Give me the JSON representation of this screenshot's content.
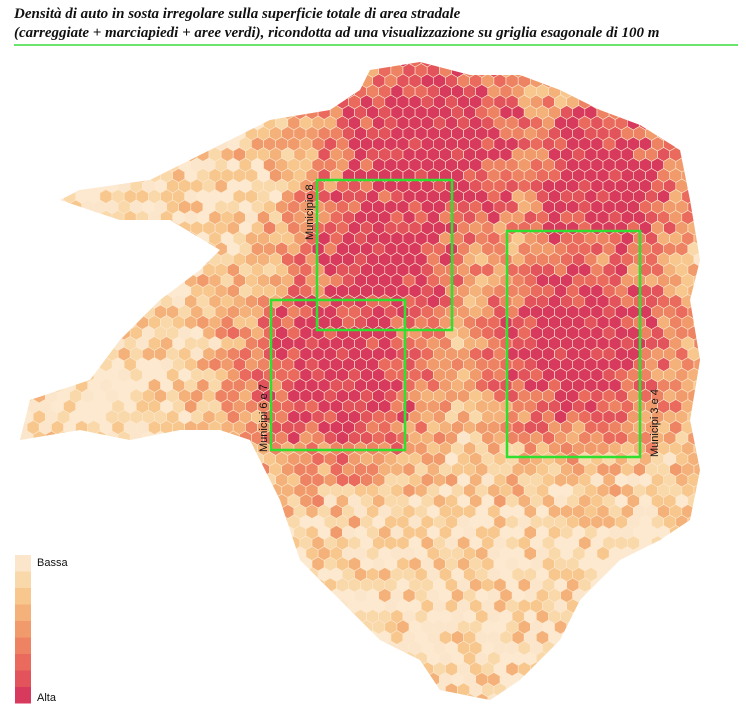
{
  "title": {
    "line1": "Densità di auto in sosta irregolare sulla superficie totale di area stradale",
    "line2": "(carreggiate + marciapiedi + aree verdi), ricondotta ad una visualizzazione su griglia esagonale di 100 m"
  },
  "annotations": [
    "Municipio 8",
    "Municipi 6 e 7",
    "Municipi 3 e 4"
  ],
  "legend": {
    "low": "Bassa",
    "high": "Alta",
    "colors": [
      "#fbe6cb",
      "#f9d8aa",
      "#f7c78d",
      "#f4b27a",
      "#f19b6c",
      "#ee8364",
      "#ea6b5e",
      "#e2535b",
      "#d83a5e"
    ]
  }
}
